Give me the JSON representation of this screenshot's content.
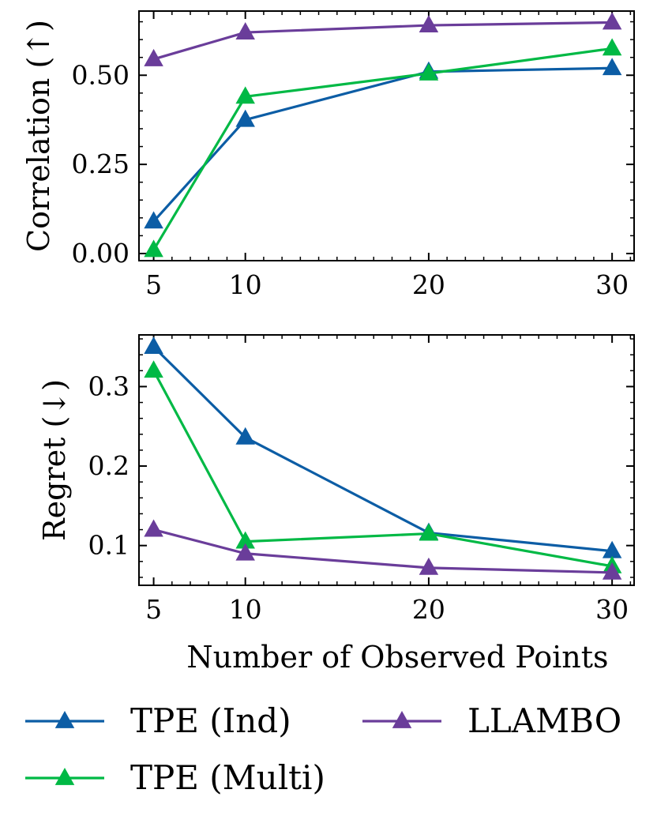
{
  "chart_data": [
    {
      "type": "line",
      "ylabel": "Correlation (↑)",
      "x": [
        5,
        10,
        20,
        30
      ],
      "xlim": [
        4.2,
        31.2
      ],
      "ylim": [
        -0.02,
        0.68
      ],
      "xticks": [
        5,
        10,
        20,
        30
      ],
      "yticks": [
        0.0,
        0.25,
        0.5
      ],
      "ytick_labels": [
        "0.00",
        "0.25",
        "0.50"
      ],
      "series": [
        {
          "name": "TPE (Ind)",
          "color": "#0C5DA5",
          "marker": "triangle-up",
          "values": [
            0.09,
            0.375,
            0.51,
            0.52
          ]
        },
        {
          "name": "TPE (Multi)",
          "color": "#00B945",
          "marker": "triangle-up",
          "values": [
            0.01,
            0.44,
            0.505,
            0.575
          ]
        },
        {
          "name": "LLAMBO",
          "color": "#6A3D9A",
          "marker": "triangle-up",
          "values": [
            0.545,
            0.62,
            0.64,
            0.648
          ]
        }
      ]
    },
    {
      "type": "line",
      "ylabel": "Regret (↓)",
      "xlabel": "Number of Observed Points",
      "x": [
        5,
        10,
        20,
        30
      ],
      "xlim": [
        4.2,
        31.2
      ],
      "ylim": [
        0.05,
        0.365
      ],
      "xticks": [
        5,
        10,
        20,
        30
      ],
      "yticks": [
        0.1,
        0.2,
        0.3
      ],
      "ytick_labels": [
        "0.1",
        "0.2",
        "0.3"
      ],
      "series": [
        {
          "name": "TPE (Ind)",
          "color": "#0C5DA5",
          "marker": "triangle-up",
          "values": [
            0.35,
            0.236,
            0.116,
            0.093
          ]
        },
        {
          "name": "TPE (Multi)",
          "color": "#00B945",
          "marker": "triangle-up",
          "values": [
            0.32,
            0.105,
            0.115,
            0.074
          ]
        },
        {
          "name": "LLAMBO",
          "color": "#6A3D9A",
          "marker": "triangle-up",
          "values": [
            0.12,
            0.09,
            0.072,
            0.066
          ]
        }
      ]
    }
  ],
  "legend": {
    "placement": "bottom",
    "items": [
      "TPE (Ind)",
      "LLAMBO",
      "TPE (Multi)"
    ]
  }
}
